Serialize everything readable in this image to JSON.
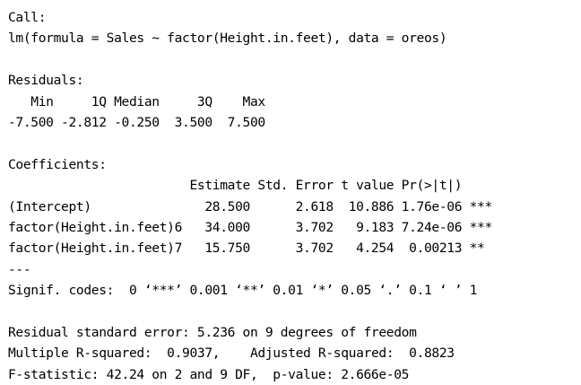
{
  "call": {
    "header": "Call:",
    "formula": "lm(formula = Sales ~ factor(Height.in.feet), data = oreos)"
  },
  "residuals": {
    "header": "Residuals:",
    "labels_row": "   Min     1Q Median     3Q    Max ",
    "values_row": "-7.500 -2.812 -0.250  3.500  7.500 "
  },
  "coefficients": {
    "header": "Coefficients:",
    "column_header_row": "                        Estimate Std. Error t value Pr(>|t|)    ",
    "rows": [
      "(Intercept)               28.500      2.618  10.886 1.76e-06 ***",
      "factor(Height.in.feet)6   34.000      3.702   9.183 7.24e-06 ***",
      "factor(Height.in.feet)7   15.750      3.702   4.254  0.00213 ** "
    ],
    "separator": "---",
    "signif_codes": "Signif. codes:  0 ‘***’ 0.001 ‘**’ 0.01 ‘*’ 0.05 ‘.’ 0.1 ‘ ’ 1"
  },
  "summary": {
    "residual_se": "Residual standard error: 5.236 on 9 degrees of freedom",
    "r_squared": "Multiple R-squared:  0.9037,\tAdjusted R-squared:  0.8823 ",
    "f_statistic": "F-statistic: 42.24 on 2 and 9 DF,  p-value: 2.666e-05"
  }
}
